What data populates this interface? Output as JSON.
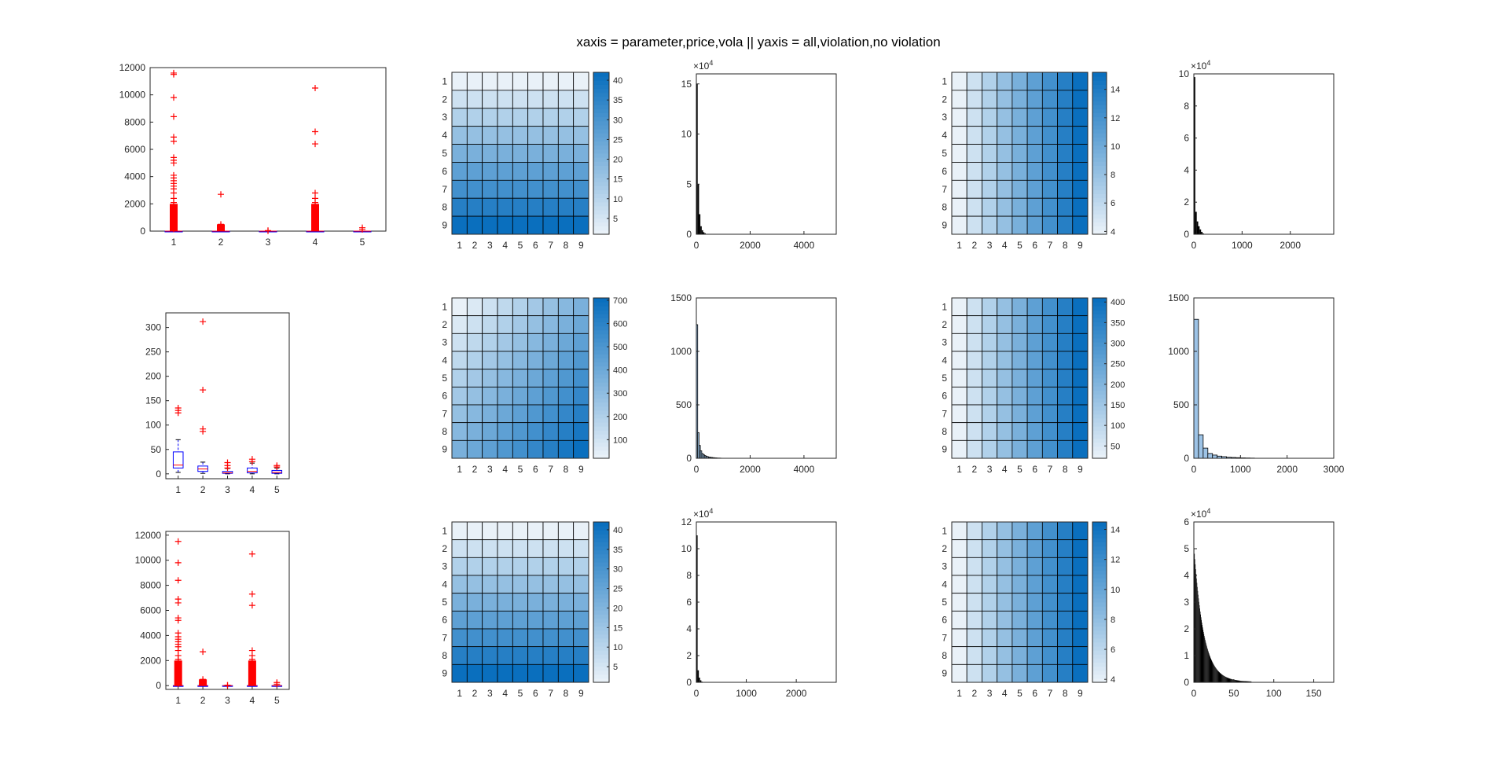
{
  "figure": {
    "title": "xaxis = parameter,price,vola || yaxis = all,violation,no violation"
  },
  "colors": {
    "box_outline": "#0000ff",
    "median": "#ff0000",
    "outlier": "#ff0000",
    "heatmap_low": "#e9f1f8",
    "heatmap_high": "#0a6fbe",
    "hist_dark": "#000000",
    "hist_light": "#9dc3e6"
  },
  "chart_data": [
    {
      "id": "r1c1",
      "type": "boxplot",
      "categories": [
        "1",
        "2",
        "3",
        "4",
        "5"
      ],
      "ylim": [
        0,
        12000
      ],
      "yticks": [
        0,
        2000,
        4000,
        6000,
        8000,
        10000,
        12000
      ],
      "boxes": [
        {
          "q1": 0,
          "median": 0,
          "q3": 0,
          "lo": 0,
          "hi": 0,
          "outliers": [
            11500,
            11600,
            9800,
            8400,
            6900,
            6600,
            5400,
            5200,
            5000,
            4100,
            3900,
            3700,
            3500,
            3300,
            3100,
            2800,
            2400,
            2100,
            1900,
            1700,
            1500,
            1300,
            1100,
            900,
            700,
            500,
            300,
            150
          ]
        },
        {
          "q1": 0,
          "median": 0,
          "q3": 0,
          "lo": 0,
          "hi": 0,
          "outliers": [
            2700,
            500,
            350,
            200
          ]
        },
        {
          "q1": 0,
          "median": 0,
          "q3": 0,
          "lo": 0,
          "hi": 0,
          "outliers": [
            40,
            20
          ]
        },
        {
          "q1": 0,
          "median": 0,
          "q3": 0,
          "lo": 0,
          "hi": 0,
          "outliers": [
            10500,
            7300,
            6400,
            2800,
            2400,
            2100,
            1900,
            600,
            400,
            200
          ]
        },
        {
          "q1": 0,
          "median": 0,
          "q3": 0,
          "lo": 0,
          "hi": 0,
          "outliers": [
            250,
            120
          ]
        }
      ]
    },
    {
      "id": "r1c2",
      "type": "heatmap",
      "rows": [
        "1",
        "2",
        "3",
        "4",
        "5",
        "6",
        "7",
        "8",
        "9"
      ],
      "cols": [
        "1",
        "2",
        "3",
        "4",
        "5",
        "6",
        "7",
        "8",
        "9"
      ],
      "pattern": "rows",
      "range": [
        1,
        42
      ],
      "colorbar_ticks": [
        5,
        10,
        15,
        20,
        25,
        30,
        35,
        40
      ]
    },
    {
      "id": "r1c3",
      "type": "histogram",
      "exponent": "4",
      "xlim": [
        0,
        5200
      ],
      "xticks": [
        0,
        2000,
        4000
      ],
      "ylim": [
        0,
        16
      ],
      "yticks": [
        0,
        5,
        10,
        15
      ],
      "color": "dark",
      "bins": [
        [
          0,
          15
        ],
        [
          50,
          5
        ],
        [
          100,
          2
        ],
        [
          150,
          0.8
        ],
        [
          200,
          0.4
        ],
        [
          250,
          0.2
        ],
        [
          300,
          0.1
        ]
      ]
    },
    {
      "id": "r1c4",
      "type": "heatmap",
      "rows": [
        "1",
        "2",
        "3",
        "4",
        "5",
        "6",
        "7",
        "8",
        "9"
      ],
      "cols": [
        "1",
        "2",
        "3",
        "4",
        "5",
        "6",
        "7",
        "8",
        "9"
      ],
      "pattern": "cols",
      "range": [
        3.8,
        15.2
      ],
      "colorbar_ticks": [
        4,
        6,
        8,
        10,
        12,
        14
      ]
    },
    {
      "id": "r1c5",
      "type": "histogram",
      "exponent": "4",
      "xlim": [
        0,
        2900
      ],
      "xticks": [
        0,
        1000,
        2000
      ],
      "ylim": [
        0,
        10
      ],
      "yticks": [
        0,
        2,
        4,
        6,
        8,
        10
      ],
      "color": "dark",
      "bins": [
        [
          0,
          9.8
        ],
        [
          30,
          1.4
        ],
        [
          60,
          0.8
        ],
        [
          90,
          0.5
        ],
        [
          120,
          0.3
        ],
        [
          150,
          0.15
        ],
        [
          180,
          0.05
        ]
      ]
    },
    {
      "id": "r2c1",
      "type": "boxplot",
      "categories": [
        "1",
        "2",
        "3",
        "4",
        "5"
      ],
      "ylim": [
        -10,
        330
      ],
      "yticks": [
        0,
        50,
        100,
        150,
        200,
        250,
        300
      ],
      "boxes": [
        {
          "q1": 12,
          "median": 18,
          "q3": 45,
          "lo": 3,
          "hi": 70,
          "outliers": [
            135,
            130,
            125
          ]
        },
        {
          "q1": 5,
          "median": 10,
          "q3": 16,
          "lo": 1,
          "hi": 24,
          "outliers": [
            312,
            172,
            92,
            87
          ]
        },
        {
          "q1": 1,
          "median": 2,
          "q3": 5,
          "lo": 0,
          "hi": 11,
          "outliers": [
            23,
            17,
            12
          ]
        },
        {
          "q1": 2,
          "median": 5,
          "q3": 12,
          "lo": 0,
          "hi": 22,
          "outliers": [
            30,
            25
          ]
        },
        {
          "q1": 1,
          "median": 3,
          "q3": 7,
          "lo": 0,
          "hi": 12,
          "outliers": [
            17,
            14
          ]
        }
      ]
    },
    {
      "id": "r2c2",
      "type": "heatmap",
      "rows": [
        "1",
        "2",
        "3",
        "4",
        "5",
        "6",
        "7",
        "8",
        "9"
      ],
      "cols": [
        "1",
        "2",
        "3",
        "4",
        "5",
        "6",
        "7",
        "8",
        "9"
      ],
      "pattern": "both",
      "range": [
        20,
        710
      ],
      "colorbar_ticks": [
        100,
        200,
        300,
        400,
        500,
        600,
        700
      ]
    },
    {
      "id": "r2c3",
      "type": "histogram",
      "exponent": "",
      "xlim": [
        0,
        5200
      ],
      "xticks": [
        0,
        2000,
        4000
      ],
      "ylim": [
        0,
        1500
      ],
      "yticks": [
        0,
        500,
        1000,
        1500
      ],
      "color": "light",
      "bins": [
        [
          0,
          1250
        ],
        [
          50,
          240
        ],
        [
          100,
          120
        ],
        [
          150,
          70
        ],
        [
          200,
          45
        ],
        [
          250,
          35
        ],
        [
          300,
          25
        ],
        [
          350,
          20
        ],
        [
          400,
          15
        ],
        [
          450,
          12
        ],
        [
          500,
          10
        ],
        [
          550,
          8
        ],
        [
          600,
          6
        ],
        [
          650,
          5
        ],
        [
          700,
          4
        ],
        [
          750,
          3
        ],
        [
          800,
          2
        ],
        [
          850,
          2
        ],
        [
          900,
          1
        ]
      ]
    },
    {
      "id": "r2c4",
      "type": "heatmap",
      "rows": [
        "1",
        "2",
        "3",
        "4",
        "5",
        "6",
        "7",
        "8",
        "9"
      ],
      "cols": [
        "1",
        "2",
        "3",
        "4",
        "5",
        "6",
        "7",
        "8",
        "9"
      ],
      "pattern": "cols",
      "range": [
        20,
        410
      ],
      "colorbar_ticks": [
        50,
        100,
        150,
        200,
        250,
        300,
        350,
        400
      ]
    },
    {
      "id": "r2c5",
      "type": "histogram",
      "exponent": "",
      "xlim": [
        0,
        3000
      ],
      "xticks": [
        0,
        1000,
        2000,
        3000
      ],
      "ylim": [
        0,
        1500
      ],
      "yticks": [
        0,
        500,
        1000,
        1500
      ],
      "color": "light",
      "bins": [
        [
          0,
          1300
        ],
        [
          100,
          220
        ],
        [
          200,
          95
        ],
        [
          300,
          45
        ],
        [
          400,
          30
        ],
        [
          500,
          20
        ],
        [
          600,
          15
        ],
        [
          700,
          10
        ],
        [
          800,
          8
        ],
        [
          900,
          6
        ],
        [
          1000,
          4
        ],
        [
          1100,
          3
        ],
        [
          1200,
          2
        ]
      ]
    },
    {
      "id": "r3c1",
      "type": "boxplot",
      "categories": [
        "1",
        "2",
        "3",
        "4",
        "5"
      ],
      "ylim": [
        -300,
        12300
      ],
      "yticks": [
        0,
        2000,
        4000,
        6000,
        8000,
        10000,
        12000
      ],
      "boxes": [
        {
          "q1": 0,
          "median": 0,
          "q3": 0,
          "lo": 0,
          "hi": 0,
          "outliers": [
            11500,
            9800,
            8400,
            6900,
            6600,
            5400,
            5200,
            4200,
            3900,
            3700,
            3500,
            3300,
            3100,
            2800,
            2400,
            2100,
            1900,
            1700,
            1500,
            1300,
            1100,
            900,
            700,
            500,
            300,
            150
          ]
        },
        {
          "q1": 0,
          "median": 0,
          "q3": 0,
          "lo": 0,
          "hi": 0,
          "outliers": [
            2700,
            500,
            350,
            200
          ]
        },
        {
          "q1": 0,
          "median": 0,
          "q3": 0,
          "lo": 0,
          "hi": 0,
          "outliers": [
            40,
            20
          ]
        },
        {
          "q1": 0,
          "median": 0,
          "q3": 0,
          "lo": 0,
          "hi": 0,
          "outliers": [
            10500,
            7300,
            6400,
            2800,
            2400,
            2100,
            1900,
            600,
            400,
            200
          ]
        },
        {
          "q1": 0,
          "median": 0,
          "q3": 0,
          "lo": 0,
          "hi": 0,
          "outliers": [
            250,
            120
          ]
        }
      ]
    },
    {
      "id": "r3c2",
      "type": "heatmap",
      "rows": [
        "1",
        "2",
        "3",
        "4",
        "5",
        "6",
        "7",
        "8",
        "9"
      ],
      "cols": [
        "1",
        "2",
        "3",
        "4",
        "5",
        "6",
        "7",
        "8",
        "9"
      ],
      "pattern": "rows",
      "range": [
        1,
        42
      ],
      "colorbar_ticks": [
        5,
        10,
        15,
        20,
        25,
        30,
        35,
        40
      ]
    },
    {
      "id": "r3c3",
      "type": "histogram",
      "exponent": "4",
      "xlim": [
        0,
        2800
      ],
      "xticks": [
        0,
        1000,
        2000
      ],
      "ylim": [
        0,
        12
      ],
      "yticks": [
        0,
        2,
        4,
        6,
        8,
        10,
        12
      ],
      "color": "dark",
      "bins": [
        [
          0,
          11
        ],
        [
          25,
          0.9
        ],
        [
          50,
          0.35
        ],
        [
          75,
          0.15
        ],
        [
          100,
          0.05
        ]
      ]
    },
    {
      "id": "r3c4",
      "type": "heatmap",
      "rows": [
        "1",
        "2",
        "3",
        "4",
        "5",
        "6",
        "7",
        "8",
        "9"
      ],
      "cols": [
        "1",
        "2",
        "3",
        "4",
        "5",
        "6",
        "7",
        "8",
        "9"
      ],
      "pattern": "cols",
      "range": [
        3.8,
        14.5
      ],
      "colorbar_ticks": [
        4,
        6,
        8,
        10,
        12,
        14
      ]
    },
    {
      "id": "r3c5",
      "type": "histogram",
      "exponent": "4",
      "xlim": [
        0,
        175
      ],
      "xticks": [
        0,
        50,
        100,
        150
      ],
      "ylim": [
        0,
        6
      ],
      "yticks": [
        0,
        1,
        2,
        3,
        4,
        5,
        6
      ],
      "color": "dark",
      "dense": true,
      "decay": {
        "start": 5.0,
        "end": 0.02,
        "xmax": 72
      }
    }
  ]
}
